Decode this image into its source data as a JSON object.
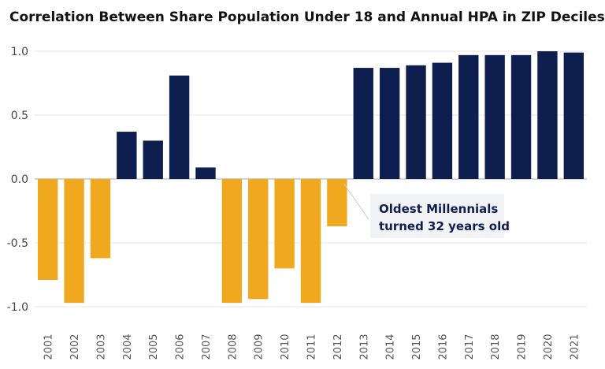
{
  "chart_data": {
    "type": "bar",
    "title": "Correlation Between Share Population Under 18 and Annual HPA in ZIP Deciles",
    "xlabel": "",
    "ylabel": "",
    "ylim": [
      -1.0,
      1.0
    ],
    "y_ticks": [
      1.0,
      0.5,
      0.0,
      -0.5,
      -1.0
    ],
    "y_tick_labels": [
      "1.0",
      "0.5",
      "0.0",
      "-0.5",
      "-1.0"
    ],
    "grid": true,
    "categories": [
      "2001",
      "2002",
      "2003",
      "2004",
      "2005",
      "2006",
      "2007",
      "2008",
      "2009",
      "2010",
      "2011",
      "2012",
      "2013",
      "2014",
      "2015",
      "2016",
      "2017",
      "2018",
      "2019",
      "2020",
      "2021"
    ],
    "values": [
      -0.79,
      -0.97,
      -0.62,
      0.37,
      0.3,
      0.81,
      0.09,
      -0.97,
      -0.94,
      -0.7,
      -0.97,
      -0.37,
      0.87,
      0.87,
      0.89,
      0.91,
      0.97,
      0.97,
      0.97,
      1.0,
      0.99
    ],
    "colors": {
      "positive": "#0e1f4f",
      "negative": "#f0a81e",
      "grid": "#e6e6e6",
      "zero_line": "#aaaaaa",
      "annotation_box": "#f2f3f6",
      "annotation_text": "#0e1f4f"
    },
    "annotation": {
      "lines": [
        "Oldest Millennials",
        "turned 32 years old"
      ],
      "points_to": "2012"
    }
  }
}
